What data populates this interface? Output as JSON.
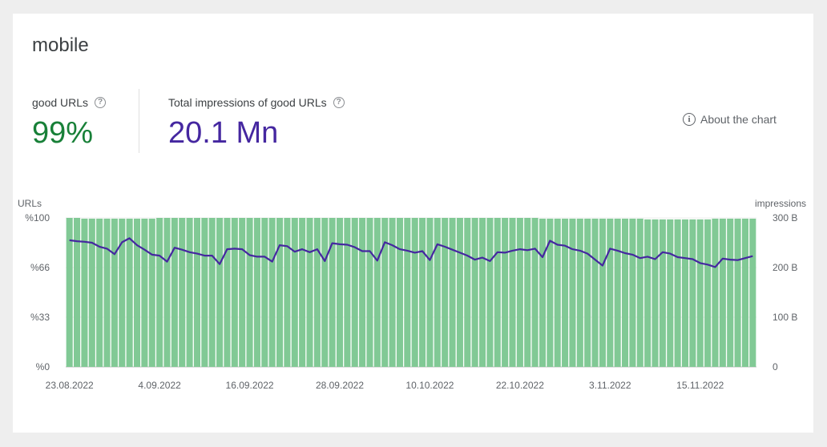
{
  "title": "mobile",
  "metrics": {
    "good_urls": {
      "label": "good URLs",
      "value": "99%",
      "color": "#188038"
    },
    "impressions": {
      "label": "Total impressions of good URLs",
      "value": "20.1 Mn",
      "color": "#4527a0"
    }
  },
  "about_label": "About the chart",
  "chart_data": {
    "type": "bar",
    "bar_color": "#81c995",
    "line_color": "#4527a0",
    "left_axis": {
      "title": "URLs",
      "ticks": [
        "%0",
        "%33",
        "%66",
        "%100"
      ],
      "ylim": [
        0,
        100
      ]
    },
    "right_axis": {
      "title": "impressions",
      "ticks": [
        "0",
        "100 B",
        "200 B",
        "300 B"
      ],
      "ylim": [
        0,
        300
      ]
    },
    "x_labels": [
      "23.08.2022",
      "4.09.2022",
      "16.09.2022",
      "28.09.2022",
      "10.10.2022",
      "22.10.2022",
      "3.11.2022",
      "15.11.2022"
    ],
    "series": [
      {
        "type": "bar",
        "axis": "left",
        "values": [
          100,
          100,
          99.5,
          99.5,
          99.5,
          99.5,
          99.5,
          99.5,
          99.5,
          99.5,
          99.5,
          99.5,
          100,
          100,
          100,
          100,
          100,
          100,
          100,
          100,
          100,
          100,
          100,
          100,
          100,
          100,
          100,
          100,
          100,
          100,
          100,
          100,
          100,
          100,
          100,
          100,
          100,
          100,
          100,
          100,
          100,
          100,
          100,
          100,
          100,
          100,
          100,
          100,
          100,
          100,
          100,
          100,
          100,
          100,
          100,
          100,
          100,
          100,
          100,
          100,
          100,
          100,
          100,
          99.5,
          99.5,
          99.5,
          99.5,
          99.5,
          99.5,
          99.5,
          99.5,
          99.5,
          99.5,
          99.5,
          99.5,
          99.5,
          99.5,
          99,
          99,
          99,
          99,
          99,
          99,
          99,
          99,
          99,
          99.5,
          99.5,
          99.5,
          99.5,
          99.5,
          99.5
        ]
      },
      {
        "type": "line",
        "axis": "right",
        "values": [
          255,
          253,
          252,
          250,
          242,
          238,
          227,
          251,
          259,
          245,
          236,
          226,
          224,
          212,
          240,
          236,
          231,
          228,
          224,
          224,
          207,
          237,
          238,
          237,
          225,
          222,
          222,
          212,
          245,
          243,
          232,
          237,
          231,
          237,
          213,
          249,
          247,
          246,
          241,
          233,
          233,
          214,
          251,
          245,
          237,
          234,
          230,
          233,
          215,
          247,
          242,
          236,
          230,
          224,
          216,
          220,
          213,
          231,
          230,
          234,
          237,
          235,
          238,
          221,
          254,
          246,
          244,
          237,
          234,
          228,
          216,
          204,
          238,
          234,
          229,
          226,
          219,
          222,
          217,
          231,
          228,
          221,
          219,
          217,
          209,
          206,
          201,
          218,
          216,
          215,
          219,
          223
        ]
      }
    ]
  }
}
